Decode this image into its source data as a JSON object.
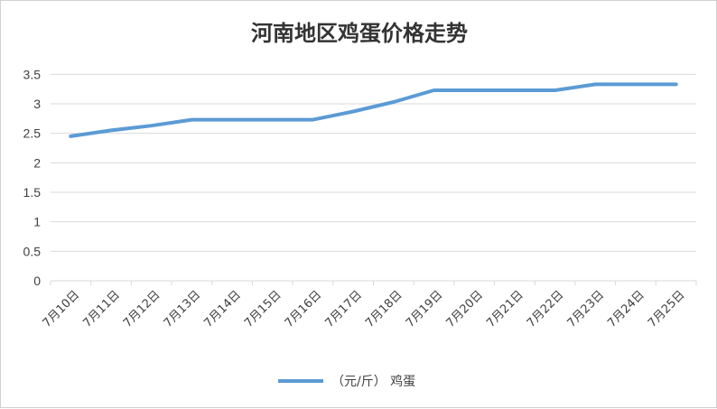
{
  "chart_data": {
    "type": "line",
    "title": "河南地区鸡蛋价格走势",
    "xlabel": "",
    "ylabel": "",
    "categories": [
      "7月10日",
      "7月11日",
      "7月12日",
      "7月13日",
      "7月14日",
      "7月15日",
      "7月16日",
      "7月17日",
      "7月18日",
      "7月19日",
      "7月20日",
      "7月21日",
      "7月22日",
      "7月23日",
      "7月24日",
      "7月25日"
    ],
    "yticks": [
      "0",
      "0.5",
      "1",
      "1.5",
      "2",
      "2.5",
      "3",
      "3.5"
    ],
    "ylim": [
      0,
      3.75
    ],
    "grid": true,
    "legend": "bottom",
    "series": [
      {
        "name": "（元/斤）  鸡蛋",
        "color": "#5b9bd5",
        "values": [
          2.45,
          2.55,
          2.63,
          2.73,
          2.73,
          2.73,
          2.73,
          2.87,
          3.03,
          3.23,
          3.23,
          3.23,
          3.23,
          3.33,
          3.33,
          3.33
        ]
      }
    ]
  }
}
